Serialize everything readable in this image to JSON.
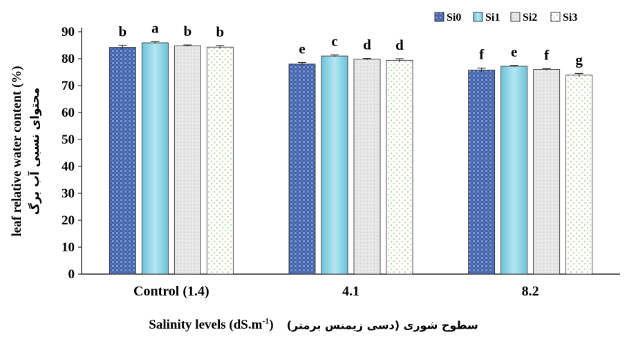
{
  "chart_data": {
    "type": "bar",
    "title": "",
    "ylabel_en": "leaf relative water content (%)",
    "ylabel_fa": "محتوای نسبی آب برگ",
    "xlabel_en": "Salinity levels (dS.m",
    "xlabel_sup": "-1",
    "xlabel_en_close": ")",
    "xlabel_fa": "سطوح شوری (دسی زیمنس برمتر)",
    "ylim": [
      0,
      90
    ],
    "yticks": [
      0,
      10,
      20,
      30,
      40,
      50,
      60,
      70,
      80,
      90
    ],
    "grid": false,
    "legend_position": "top-right",
    "categories": [
      "Control (1.4)",
      "4.1",
      "8.2"
    ],
    "series": [
      {
        "name": "Si0",
        "values": [
          84.2,
          78.0,
          75.8
        ],
        "errors": [
          0.8,
          0.6,
          0.7
        ],
        "letters": [
          "b",
          "e",
          "f"
        ],
        "color": "#4a6fb5"
      },
      {
        "name": "Si1",
        "values": [
          85.9,
          81.0,
          77.2
        ],
        "errors": [
          0.4,
          0.4,
          0.3
        ],
        "letters": [
          "a",
          "c",
          "e"
        ],
        "color": "#8fd3e6"
      },
      {
        "name": "Si2",
        "values": [
          84.8,
          79.8,
          76.0
        ],
        "errors": [
          0.3,
          0.3,
          0.3
        ],
        "letters": [
          "b",
          "d",
          "f"
        ],
        "color": "#dcdcdc"
      },
      {
        "name": "Si3",
        "values": [
          84.3,
          79.4,
          73.9
        ],
        "errors": [
          0.6,
          0.6,
          0.6
        ],
        "letters": [
          "b",
          "d",
          "g"
        ],
        "color": "#ffffff"
      }
    ]
  }
}
